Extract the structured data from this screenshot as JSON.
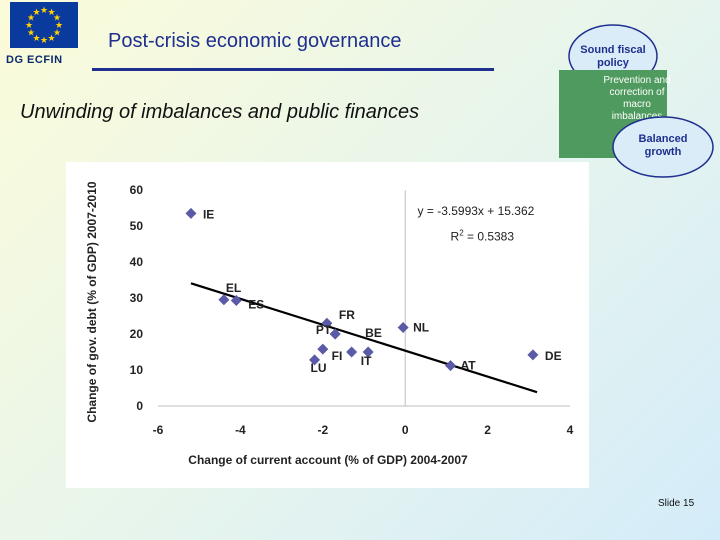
{
  "header": {
    "org_label": "DG ECFIN",
    "title": "Post-crisis economic governance",
    "subtitle": "Unwinding of imbalances and public finances"
  },
  "governance_diagram": {
    "items": [
      "Sound fiscal policy",
      "Prevention and correction of macro imbalances",
      "Balanced growth"
    ]
  },
  "footer": {
    "slide_label": "Slide 15"
  },
  "colors": {
    "title": "#1f2f8f",
    "marker": "#5a5aa6",
    "trendline": "#000000"
  },
  "chart_data": {
    "type": "scatter",
    "xlabel": "Change of current account (% of GDP) 2004-2007",
    "ylabel": "Change of gov. debt (% of GDP) 2007-2010",
    "xlim": [
      -6,
      4
    ],
    "ylim": [
      0,
      60
    ],
    "xticks": [
      "-6",
      "-4",
      "-2",
      "0",
      "2",
      "4"
    ],
    "yticks": [
      "0",
      "10",
      "20",
      "30",
      "40",
      "50",
      "60"
    ],
    "grid": false,
    "points": [
      {
        "label": "IE",
        "x": -5.2,
        "y": 53.5
      },
      {
        "label": "EL",
        "x": -4.4,
        "y": 29.5
      },
      {
        "label": "ES",
        "x": -4.1,
        "y": 29.3
      },
      {
        "label": "FR",
        "x": -1.9,
        "y": 23.0
      },
      {
        "label": "PT",
        "x": -1.7,
        "y": 20.0
      },
      {
        "label": "",
        "x": -2.0,
        "y": 15.8
      },
      {
        "label": "LU",
        "x": -2.2,
        "y": 12.8
      },
      {
        "label": "FI",
        "x": -1.3,
        "y": 15.0
      },
      {
        "label": "IT",
        "x": -0.9,
        "y": 15.0
      },
      {
        "label": "BE",
        "x": -1.7,
        "y": 20.0
      },
      {
        "label": "NL",
        "x": -0.05,
        "y": 21.8
      },
      {
        "label": "AT",
        "x": 1.1,
        "y": 11.2
      },
      {
        "label": "DE",
        "x": 3.1,
        "y": 14.2
      }
    ],
    "trendline": {
      "slope": -3.5993,
      "intercept": 15.362,
      "x_range": [
        -5.2,
        3.2
      ],
      "equation": "y = -3.5993x + 15.362",
      "r2_prefix": "R",
      "r2_exp": "2",
      "r2_suffix": " = 0.5383"
    }
  }
}
